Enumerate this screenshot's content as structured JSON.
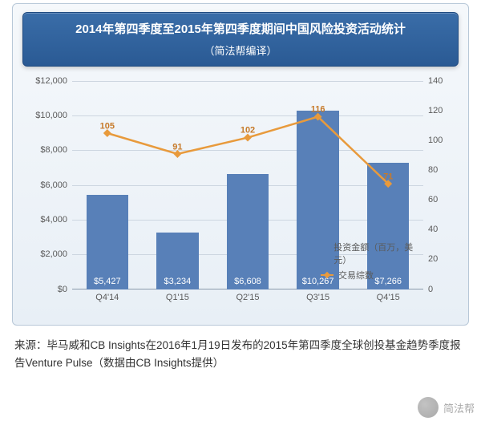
{
  "title": {
    "main": "2014年第四季度至2015年第四季度期间中国风险投资活动统计",
    "sub": "（简法帮编译）",
    "bg_gradient": [
      "#3a6da8",
      "#2a5a94"
    ],
    "text_color": "#ffffff",
    "main_fontsize": 15,
    "sub_fontsize": 13
  },
  "chart": {
    "type": "bar+line",
    "background_gradient": [
      "#f5f8fb",
      "#e8eff6"
    ],
    "border_color": "#b8c8d8",
    "grid_color": "#cdd6e0",
    "axis_color": "#8a9aac",
    "categories": [
      "Q4'14",
      "Q1'15",
      "Q2'15",
      "Q3'15",
      "Q4'15"
    ],
    "bars": {
      "values": [
        5427,
        3234,
        6608,
        10267,
        7266
      ],
      "labels": [
        "$5,427",
        "$3,234",
        "$6,608",
        "$10,267",
        "$7,266"
      ],
      "color": "#5880b8",
      "label_color": "#ffffff",
      "width_pct": 12,
      "y_min": 0,
      "y_max": 12000,
      "y_tick_step": 2000,
      "y_ticks": [
        "$0",
        "$2,000",
        "$4,000",
        "$6,000",
        "$8,000",
        "$10,000",
        "$12,000"
      ]
    },
    "line": {
      "values": [
        105,
        91,
        102,
        116,
        71
      ],
      "labels": [
        "105",
        "91",
        "102",
        "116",
        "71"
      ],
      "color": "#e89a3c",
      "marker": "diamond",
      "marker_size": 7,
      "line_width": 2.5,
      "label_color": "#c77a2a",
      "y_min": 0,
      "y_max": 140,
      "y_tick_step": 20,
      "y_ticks": [
        "0",
        "20",
        "40",
        "60",
        "80",
        "100",
        "120",
        "140"
      ]
    },
    "legend": {
      "position": "right-inside",
      "items": [
        {
          "type": "bar",
          "label": "投资金额（百万，美元）",
          "color": "#5880b8"
        },
        {
          "type": "line",
          "label": "交易综数",
          "color": "#e89a3c"
        }
      ]
    },
    "fontsize_ticks": 11
  },
  "source": {
    "text": "来源：毕马威和CB Insights在2016年1月19日发布的2015年第四季度全球创投基金趋势季度报告Venture Pulse（数据由CB Insights提供）",
    "fontsize": 13.5,
    "color": "#333333"
  },
  "watermark": {
    "label": "简法帮",
    "opacity": 0.5
  }
}
